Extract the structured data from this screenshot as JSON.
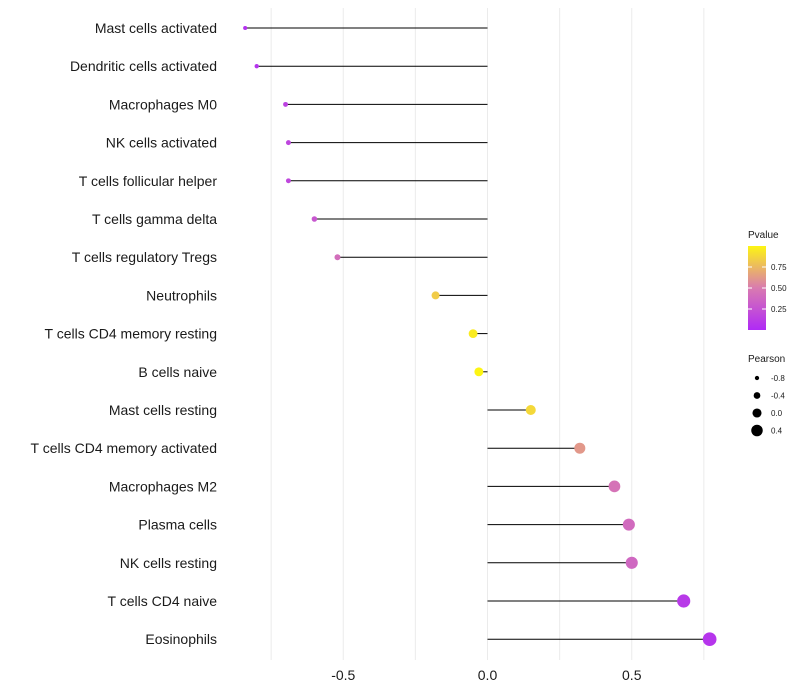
{
  "chart_data": {
    "type": "lollipop",
    "title": "",
    "xlabel": "",
    "ylabel": "",
    "xlim": [
      -0.85,
      0.78
    ],
    "xticks": [
      -0.5,
      0.0,
      0.5
    ],
    "xtick_labels": [
      "-0.5",
      "0.0",
      "0.5"
    ],
    "grid": true,
    "categories": [
      "Mast cells activated",
      "Dendritic cells activated",
      "Macrophages M0",
      "NK cells activated",
      "T cells follicular helper",
      "T cells gamma delta",
      "T cells regulatory  Tregs",
      "Neutrophils",
      "T cells CD4 memory resting",
      "B cells naive",
      "Mast cells resting",
      "T cells CD4 memory activated",
      "Macrophages M2",
      "Plasma cells",
      "NK cells resting",
      "T cells CD4 naive",
      "Eosinophils"
    ],
    "values": [
      -0.84,
      -0.8,
      -0.7,
      -0.69,
      -0.69,
      -0.6,
      -0.52,
      -0.18,
      -0.05,
      -0.03,
      0.15,
      0.32,
      0.44,
      0.49,
      0.5,
      0.68,
      0.77
    ],
    "pvalues": [
      0.05,
      0.06,
      0.15,
      0.17,
      0.18,
      0.28,
      0.42,
      0.83,
      0.96,
      1.0,
      0.88,
      0.62,
      0.45,
      0.4,
      0.38,
      0.1,
      0.07
    ],
    "color_legend": {
      "title": "Pvalue",
      "ticks": [
        0.25,
        0.5,
        0.75
      ],
      "tick_labels": [
        "0.25",
        "0.50",
        "0.75"
      ],
      "low_color": "#B02AF6",
      "mid_color": "#D97BB0",
      "high_color": "#FDF513"
    },
    "size_legend": {
      "title": "Pearson",
      "values": [
        -0.8,
        -0.4,
        0.0,
        0.4
      ],
      "labels": [
        "-0.8",
        "-0.4",
        "0.0",
        "0.4"
      ]
    }
  }
}
